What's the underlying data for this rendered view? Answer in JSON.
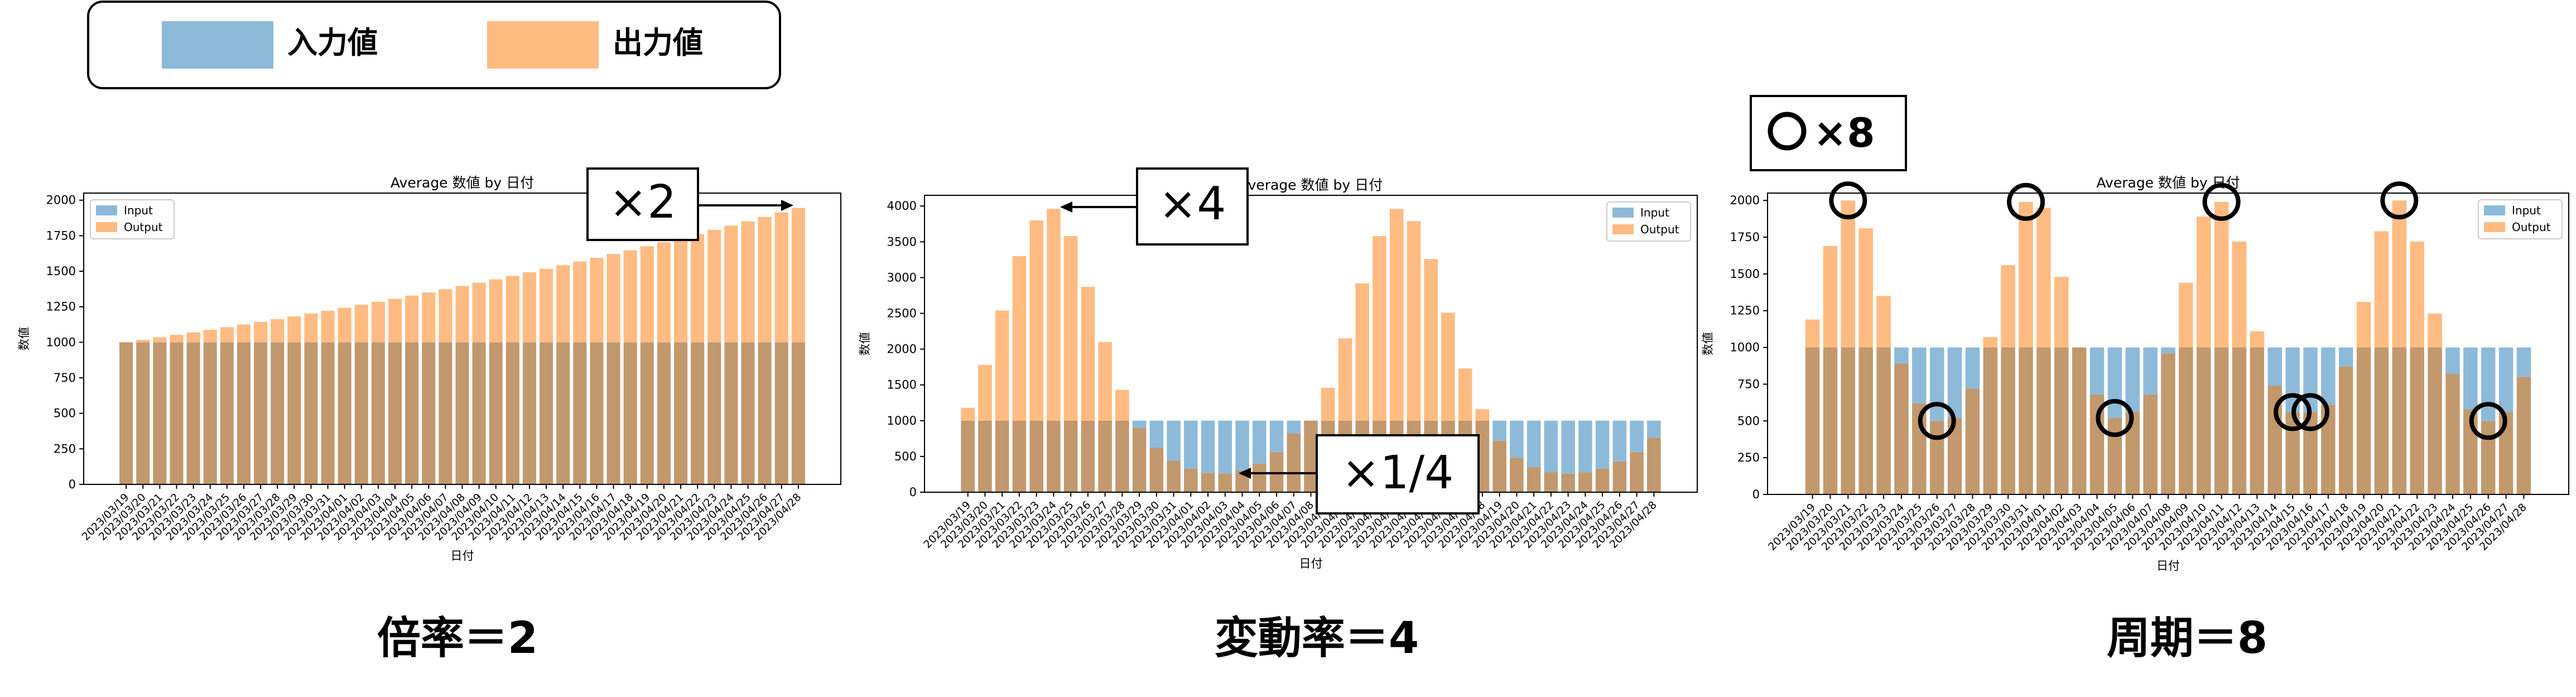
{
  "legend": {
    "items": [
      {
        "label": "入力値",
        "color": "#8dbad9"
      },
      {
        "label": "出力値",
        "color": "#ffbb82"
      }
    ]
  },
  "colors": {
    "input_bar": "#8dbad9",
    "output_bar": "#ffbb82",
    "overlap_bar": "#c2986d",
    "axis": "#000000",
    "annotation": "#000000"
  },
  "panels": [
    {
      "caption": "倍率＝2",
      "annotation": "×2"
    },
    {
      "caption": "変動率＝4",
      "annotation_top": "×4",
      "annotation_bottom": "×1/4"
    },
    {
      "caption": "周期＝8",
      "annotation": "○×8"
    }
  ],
  "chart_data": [
    {
      "type": "bar",
      "title": "Average 数値 by 日付",
      "xlabel": "日付",
      "ylabel": "数値",
      "ylim": [
        0,
        2050
      ],
      "yticks": [
        0,
        250,
        500,
        750,
        1000,
        1250,
        1500,
        1750,
        2000
      ],
      "legend_position": "top-left",
      "categories": [
        "2023/03/19",
        "2023/03/20",
        "2023/03/21",
        "2023/03/22",
        "2023/03/23",
        "2023/03/24",
        "2023/03/25",
        "2023/03/26",
        "2023/03/27",
        "2023/03/28",
        "2023/03/29",
        "2023/03/30",
        "2023/03/31",
        "2023/04/01",
        "2023/04/02",
        "2023/04/03",
        "2023/04/04",
        "2023/04/05",
        "2023/04/06",
        "2023/04/07",
        "2023/04/08",
        "2023/04/09",
        "2023/04/10",
        "2023/04/11",
        "2023/04/12",
        "2023/04/13",
        "2023/04/14",
        "2023/04/15",
        "2023/04/16",
        "2023/04/17",
        "2023/04/18",
        "2023/04/19",
        "2023/04/20",
        "2023/04/21",
        "2023/04/22",
        "2023/04/23",
        "2023/04/24",
        "2023/04/25",
        "2023/04/26",
        "2023/04/27",
        "2023/04/28"
      ],
      "series": [
        {
          "name": "Input",
          "values": [
            1000,
            1000,
            1000,
            1000,
            1000,
            1000,
            1000,
            1000,
            1000,
            1000,
            1000,
            1000,
            1000,
            1000,
            1000,
            1000,
            1000,
            1000,
            1000,
            1000,
            1000,
            1000,
            1000,
            1000,
            1000,
            1000,
            1000,
            1000,
            1000,
            1000,
            1000,
            1000,
            1000,
            1000,
            1000,
            1000,
            1000,
            1000,
            1000,
            1000,
            1000
          ]
        },
        {
          "name": "Output",
          "values": [
            1000,
            1017,
            1035,
            1052,
            1070,
            1088,
            1106,
            1125,
            1144,
            1163,
            1182,
            1202,
            1222,
            1243,
            1264,
            1285,
            1306,
            1328,
            1350,
            1373,
            1396,
            1419,
            1443,
            1467,
            1492,
            1517,
            1542,
            1568,
            1594,
            1621,
            1648,
            1676,
            1704,
            1732,
            1761,
            1791,
            1821,
            1851,
            1882,
            1914,
            1946
          ]
        }
      ]
    },
    {
      "type": "bar",
      "title": "Average 数値 by 日付",
      "xlabel": "日付",
      "ylabel": "数値",
      "ylim": [
        0,
        4150
      ],
      "yticks": [
        0,
        500,
        1000,
        1500,
        2000,
        2500,
        3000,
        3500,
        4000
      ],
      "legend_position": "top-right",
      "categories": [
        "2023/03/19",
        "2023/03/20",
        "2023/03/21",
        "2023/03/22",
        "2023/03/23",
        "2023/03/24",
        "2023/03/25",
        "2023/03/26",
        "2023/03/27",
        "2023/03/28",
        "2023/03/29",
        "2023/03/30",
        "2023/03/31",
        "2023/04/01",
        "2023/04/02",
        "2023/04/03",
        "2023/04/04",
        "2023/04/05",
        "2023/04/06",
        "2023/04/07",
        "2023/04/08",
        "2023/04/09",
        "2023/04/10",
        "2023/04/11",
        "2023/04/12",
        "2023/04/13",
        "2023/04/14",
        "2023/04/15",
        "2023/04/16",
        "2023/04/17",
        "2023/04/18",
        "2023/04/19",
        "2023/04/20",
        "2023/04/21",
        "2023/04/22",
        "2023/04/23",
        "2023/04/24",
        "2023/04/25",
        "2023/04/26",
        "2023/04/27",
        "2023/04/28"
      ],
      "series": [
        {
          "name": "Input",
          "values": [
            1000,
            1000,
            1000,
            1000,
            1000,
            1000,
            1000,
            1000,
            1000,
            1000,
            1000,
            1000,
            1000,
            1000,
            1000,
            1000,
            1000,
            1000,
            1000,
            1000,
            1000,
            1000,
            1000,
            1000,
            1000,
            1000,
            1000,
            1000,
            1000,
            1000,
            1000,
            1000,
            1000,
            1000,
            1000,
            1000,
            1000,
            1000,
            1000,
            1000,
            1000
          ]
        },
        {
          "name": "Output",
          "values": [
            1180,
            1780,
            2540,
            3300,
            3800,
            3960,
            3580,
            2870,
            2100,
            1430,
            900,
            620,
            440,
            330,
            270,
            260,
            300,
            400,
            560,
            820,
            1000,
            1460,
            2150,
            2920,
            3580,
            3960,
            3790,
            3260,
            2510,
            1730,
            1160,
            720,
            480,
            350,
            280,
            260,
            280,
            330,
            430,
            560,
            760
          ]
        }
      ]
    },
    {
      "type": "bar",
      "title": "Average 数値 by 日付",
      "xlabel": "日付",
      "ylabel": "数値",
      "ylim": [
        0,
        2050
      ],
      "yticks": [
        0,
        250,
        500,
        750,
        1000,
        1250,
        1500,
        1750,
        2000
      ],
      "legend_position": "top-right",
      "categories": [
        "2023/03/19",
        "2023/03/20",
        "2023/03/21",
        "2023/03/22",
        "2023/03/23",
        "2023/03/24",
        "2023/03/25",
        "2023/03/26",
        "2023/03/27",
        "2023/03/28",
        "2023/03/29",
        "2023/03/30",
        "2023/03/31",
        "2023/04/01",
        "2023/04/02",
        "2023/04/03",
        "2023/04/04",
        "2023/04/05",
        "2023/04/06",
        "2023/04/07",
        "2023/04/08",
        "2023/04/09",
        "2023/04/10",
        "2023/04/11",
        "2023/04/12",
        "2023/04/13",
        "2023/04/14",
        "2023/04/15",
        "2023/04/16",
        "2023/04/17",
        "2023/04/18",
        "2023/04/19",
        "2023/04/20",
        "2023/04/21",
        "2023/04/22",
        "2023/04/23",
        "2023/04/24",
        "2023/04/25",
        "2023/04/26",
        "2023/04/27",
        "2023/04/28"
      ],
      "series": [
        {
          "name": "Input",
          "values": [
            1000,
            1000,
            1000,
            1000,
            1000,
            1000,
            1000,
            1000,
            1000,
            1000,
            1000,
            1000,
            1000,
            1000,
            1000,
            1000,
            1000,
            1000,
            1000,
            1000,
            1000,
            1000,
            1000,
            1000,
            1000,
            1000,
            1000,
            1000,
            1000,
            1000,
            1000,
            1000,
            1000,
            1000,
            1000,
            1000,
            1000,
            1000,
            1000,
            1000,
            1000
          ]
        },
        {
          "name": "Output",
          "values": [
            1190,
            1690,
            2000,
            1810,
            1350,
            890,
            620,
            500,
            520,
            720,
            1070,
            1560,
            1990,
            1950,
            1480,
            1000,
            680,
            520,
            560,
            680,
            960,
            1440,
            1890,
            1990,
            1720,
            1110,
            740,
            560,
            560,
            610,
            870,
            1310,
            1790,
            2000,
            1720,
            1230,
            820,
            580,
            500,
            560,
            800
          ]
        }
      ]
    }
  ]
}
